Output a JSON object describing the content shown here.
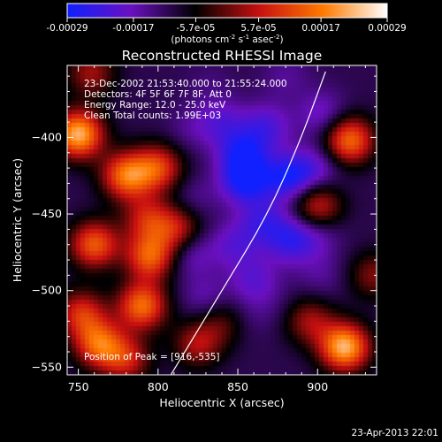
{
  "chart_data": {
    "type": "heatmap",
    "title": "Reconstructed RHESSI Image",
    "xlabel": "Heliocentric X (arcsec)",
    "ylabel": "Heliocentric Y (arcsec)",
    "xlim": [
      743,
      937
    ],
    "ylim": [
      -555,
      -353
    ],
    "x_ticks": [
      750,
      800,
      850,
      900
    ],
    "y_ticks": [
      -400,
      -450,
      -500,
      -550
    ],
    "colorbar": {
      "units_line1": "(photons cm",
      "units_sup1": "-2",
      "units_mid": " s",
      "units_sup2": "-1",
      "units_mid2": " asec",
      "units_sup3": "-2",
      "units_end": ")",
      "range": [
        -0.00029,
        0.00029
      ],
      "tick_values": [
        -0.00029,
        -0.00017,
        -5.7e-05,
        5.7e-05,
        0.00017,
        0.00029
      ],
      "tick_labels": [
        "-0.00029",
        "-0.00017",
        "-5.7e-05",
        "5.7e-05",
        "0.00017",
        "0.00029"
      ],
      "colors": [
        "#1020ff",
        "#6a10c0",
        "#000000",
        "#c81010",
        "#ff7a00",
        "#ffffff"
      ]
    },
    "annotations": [
      "23-Dec-2002 21:53:40.000 to 21:55:24.000",
      "Detectors: 4F 5F 6F 7F 8F, Att 0",
      "Energy Range: 12.0 - 25.0 keV",
      "Clean    Total counts: 1.99E+03"
    ],
    "peak_label": "Position of Peak = [916,-535]",
    "footer_date": "23-Apr-2013 22:01",
    "limb_curve": [
      [
        808,
        -555
      ],
      [
        840,
        -500
      ],
      [
        869,
        -450
      ],
      [
        890,
        -400
      ],
      [
        905,
        -357
      ]
    ],
    "blobs": [
      {
        "x": 750,
        "y": -398,
        "v": 0.00029
      },
      {
        "x": 780,
        "y": -425,
        "v": 0.00022
      },
      {
        "x": 800,
        "y": -420,
        "v": 0.00017
      },
      {
        "x": 760,
        "y": -470,
        "v": 0.0002
      },
      {
        "x": 793,
        "y": -453,
        "v": 0.00012
      },
      {
        "x": 795,
        "y": -478,
        "v": 0.0002
      },
      {
        "x": 812,
        "y": -460,
        "v": 0.00013
      },
      {
        "x": 752,
        "y": -515,
        "v": 0.00015
      },
      {
        "x": 790,
        "y": -510,
        "v": 0.00022
      },
      {
        "x": 763,
        "y": -535,
        "v": 0.0002
      },
      {
        "x": 780,
        "y": -545,
        "v": 0.00013
      },
      {
        "x": 825,
        "y": -535,
        "v": 0.00011
      },
      {
        "x": 842,
        "y": -520,
        "v": 7e-05
      },
      {
        "x": 920,
        "y": -402,
        "v": 0.00022
      },
      {
        "x": 900,
        "y": -445,
        "v": 0.00014
      },
      {
        "x": 895,
        "y": -520,
        "v": 0.0001
      },
      {
        "x": 917,
        "y": -537,
        "v": 0.00029
      },
      {
        "x": 935,
        "y": -490,
        "v": 8e-05
      },
      {
        "x": 758,
        "y": -358,
        "v": 0.0001
      },
      {
        "x": 820,
        "y": -395,
        "v": -7.5e-05
      },
      {
        "x": 840,
        "y": -390,
        "v": -0.00012
      },
      {
        "x": 853,
        "y": -410,
        "v": -0.00018
      },
      {
        "x": 868,
        "y": -393,
        "v": -0.00014
      },
      {
        "x": 855,
        "y": -428,
        "v": -0.00022
      },
      {
        "x": 882,
        "y": -426,
        "v": -0.0002
      },
      {
        "x": 900,
        "y": -420,
        "v": -0.00012
      },
      {
        "x": 903,
        "y": -385,
        "v": -0.00012
      },
      {
        "x": 820,
        "y": -475,
        "v": -0.00012
      },
      {
        "x": 848,
        "y": -470,
        "v": -0.00012
      },
      {
        "x": 866,
        "y": -455,
        "v": -0.00014
      },
      {
        "x": 883,
        "y": -467,
        "v": -0.00016
      },
      {
        "x": 900,
        "y": -463,
        "v": -0.0001
      },
      {
        "x": 860,
        "y": -493,
        "v": -0.00012
      },
      {
        "x": 902,
        "y": -490,
        "v": -8e-05
      },
      {
        "x": 830,
        "y": -505,
        "v": -0.0001
      },
      {
        "x": 852,
        "y": -518,
        "v": -8e-05
      },
      {
        "x": 872,
        "y": -510,
        "v": -6e-05
      },
      {
        "x": 822,
        "y": -440,
        "v": -8e-05
      },
      {
        "x": 832,
        "y": -365,
        "v": -6e-05
      },
      {
        "x": 880,
        "y": -360,
        "v": -8e-05
      }
    ]
  }
}
